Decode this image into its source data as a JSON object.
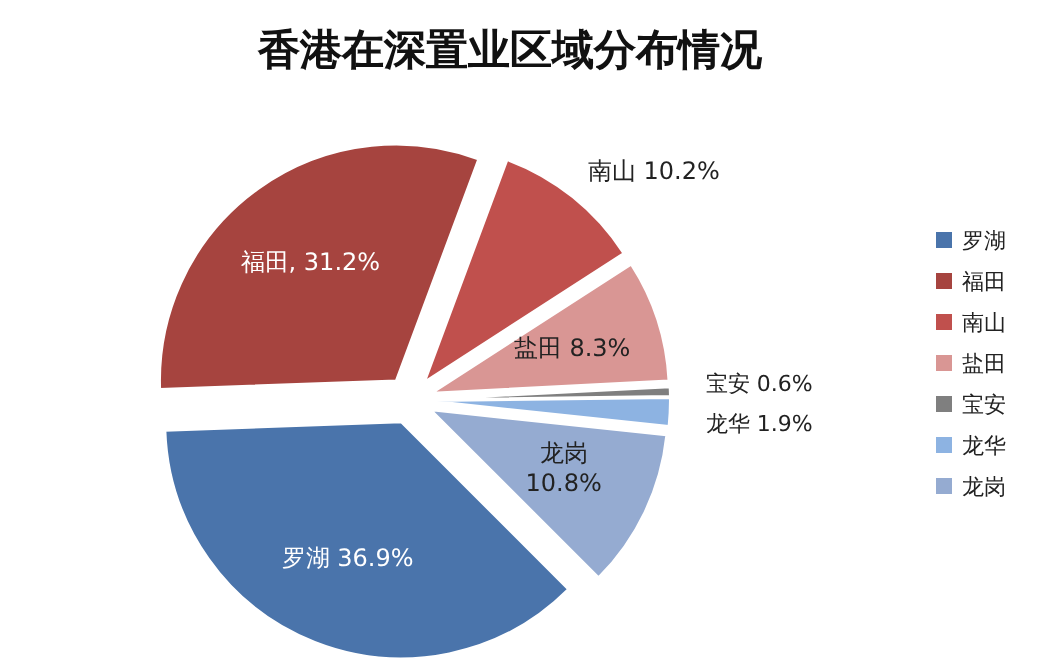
{
  "chart_data": {
    "type": "pie",
    "title": "香港在深置业区域分布情况",
    "categories": [
      "罗湖",
      "福田",
      "南山",
      "盐田",
      "宝安",
      "龙华",
      "龙岗"
    ],
    "values": [
      36.9,
      31.2,
      10.2,
      8.3,
      0.6,
      1.9,
      10.8
    ],
    "colors": [
      "#4a74ab",
      "#a6443f",
      "#c0504d",
      "#d99694",
      "#7f7f7f",
      "#8db3e2",
      "#95abd1"
    ],
    "value_labels": [
      "罗湖 36.9%",
      "福田, 31.2%",
      "南山 10.2%",
      "盐田 8.3%",
      "宝安 0.6%",
      "龙华 1.9%",
      "龙岗 10.8%"
    ],
    "legend": "right"
  }
}
